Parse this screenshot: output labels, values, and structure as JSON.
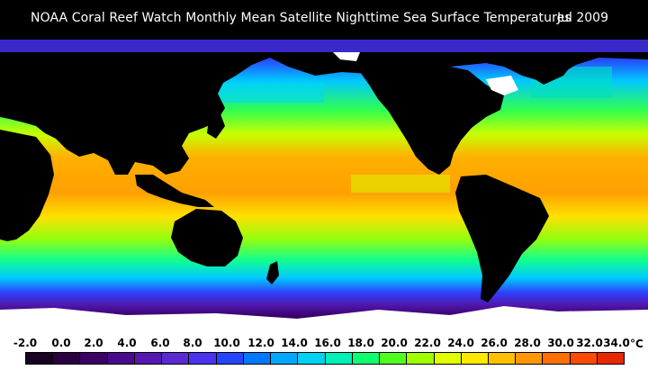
{
  "header": {
    "title": "NOAA Coral Reef Watch Monthly Mean Satellite Nighttime Sea Surface Temperatures",
    "date": "Jul 2009"
  },
  "legend": {
    "ticks": [
      "-2.0",
      "0.0",
      "2.0",
      "4.0",
      "6.0",
      "8.0",
      "10.0",
      "12.0",
      "14.0",
      "16.0",
      "18.0",
      "20.0",
      "22.0",
      "24.0",
      "26.0",
      "28.0",
      "30.0",
      "32.0",
      "34.0"
    ],
    "unit": "°C",
    "colors": [
      "#1a0024",
      "#2a0040",
      "#3c0066",
      "#4a0a8c",
      "#5618b0",
      "#5a2ad0",
      "#4a32f0",
      "#2446ff",
      "#0078ff",
      "#00a8ff",
      "#00d2f0",
      "#00f0b8",
      "#10ff70",
      "#50ff20",
      "#a0ff00",
      "#e0ff00",
      "#ffe800",
      "#ffc000",
      "#ff9800",
      "#ff7000",
      "#ff4a00",
      "#e82800"
    ]
  },
  "map": {
    "ocean_colors": {
      "polar": "#4a0a8c",
      "cold": "#2a3cff",
      "cool": "#00c8ff",
      "temperate": "#20ff60",
      "warm": "#c8ff00",
      "hot": "#ffa800",
      "land": "#000000",
      "ice": "#ffffff"
    }
  }
}
